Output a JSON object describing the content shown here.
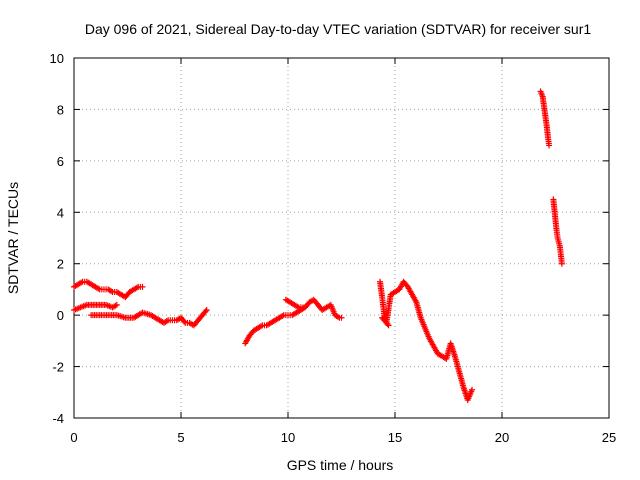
{
  "chart_data": {
    "type": "scatter",
    "title": "Day 096 of 2021, Sidereal Day-to-day VTEC variation (SDTVAR) for receiver sur1",
    "xlabel": "GPS time / hours",
    "ylabel": "SDTVAR / TECUs",
    "xlim": [
      0,
      25
    ],
    "ylim": [
      -4,
      10
    ],
    "xticks": [
      0,
      5,
      10,
      15,
      20,
      25
    ],
    "yticks": [
      -4,
      -2,
      0,
      2,
      4,
      6,
      8,
      10
    ],
    "grid": true,
    "marker": "plus",
    "color": "#ff0000",
    "segments": [
      {
        "name": "arc-a-upper",
        "x": [
          0.0,
          0.2,
          0.4,
          0.6,
          0.8,
          1.0,
          1.2,
          1.4,
          1.6,
          1.8,
          2.0,
          2.2,
          2.4,
          2.6,
          2.8,
          3.0,
          3.2
        ],
        "y": [
          1.1,
          1.2,
          1.3,
          1.3,
          1.2,
          1.1,
          1.0,
          1.0,
          1.0,
          0.9,
          0.9,
          0.8,
          0.7,
          0.9,
          1.0,
          1.1,
          1.1
        ]
      },
      {
        "name": "arc-a-middle",
        "x": [
          0.0,
          0.3,
          0.6,
          0.9,
          1.2,
          1.5,
          1.8,
          2.0
        ],
        "y": [
          0.2,
          0.3,
          0.4,
          0.4,
          0.4,
          0.4,
          0.3,
          0.4
        ]
      },
      {
        "name": "arc-a-lower",
        "x": [
          0.8,
          1.2,
          1.6,
          2.0,
          2.4,
          2.8,
          3.2,
          3.6,
          4.0,
          4.2,
          4.4,
          4.6,
          4.8,
          5.0,
          5.2,
          5.4,
          5.6,
          5.8,
          6.0,
          6.2
        ],
        "y": [
          0.0,
          0.0,
          0.0,
          0.0,
          -0.1,
          -0.1,
          0.1,
          0.0,
          -0.2,
          -0.3,
          -0.2,
          -0.2,
          -0.2,
          -0.1,
          -0.3,
          -0.3,
          -0.4,
          -0.2,
          0.0,
          0.2
        ]
      },
      {
        "name": "arc-b",
        "x": [
          8.0,
          8.2,
          8.4,
          8.6,
          8.8,
          9.0,
          9.2,
          9.4,
          9.6,
          9.8,
          10.0,
          10.2,
          10.4,
          10.6,
          10.8,
          11.0,
          11.2,
          11.4,
          11.6,
          11.8,
          12.0,
          12.2,
          12.4,
          12.5
        ],
        "y": [
          -1.1,
          -0.8,
          -0.6,
          -0.5,
          -0.4,
          -0.4,
          -0.3,
          -0.2,
          -0.1,
          0.0,
          0.0,
          0.0,
          0.1,
          0.2,
          0.3,
          0.5,
          0.6,
          0.4,
          0.2,
          0.3,
          0.4,
          0.0,
          -0.1,
          -0.1
        ]
      },
      {
        "name": "arc-b-bump",
        "x": [
          9.9,
          10.1,
          10.3,
          10.5,
          10.7
        ],
        "y": [
          0.6,
          0.5,
          0.4,
          0.3,
          0.3
        ]
      },
      {
        "name": "arc-c",
        "x": [
          14.3,
          14.4,
          14.5,
          14.6,
          14.8,
          15.0,
          15.2,
          15.4,
          15.6,
          15.8,
          16.0,
          16.2,
          16.4,
          16.6,
          16.8,
          17.0,
          17.2,
          17.4,
          17.6,
          17.8,
          18.0,
          18.2,
          18.4,
          18.6
        ],
        "y": [
          1.3,
          0.7,
          0.0,
          -0.3,
          0.8,
          0.9,
          1.0,
          1.3,
          1.1,
          0.8,
          0.5,
          -0.1,
          -0.5,
          -0.9,
          -1.2,
          -1.5,
          -1.6,
          -1.7,
          -1.1,
          -1.6,
          -2.2,
          -2.8,
          -3.3,
          -2.9
        ]
      },
      {
        "name": "arc-c-dip",
        "x": [
          14.4,
          14.5,
          14.6,
          14.7
        ],
        "y": [
          -0.1,
          -0.2,
          -0.3,
          -0.4
        ]
      },
      {
        "name": "arc-d-high",
        "x": [
          21.8,
          21.9,
          22.0,
          22.1,
          22.15,
          22.2
        ],
        "y": [
          8.7,
          8.5,
          7.9,
          7.3,
          6.9,
          6.6
        ]
      },
      {
        "name": "arc-d-low",
        "x": [
          22.4,
          22.45,
          22.5,
          22.55,
          22.6,
          22.7,
          22.8
        ],
        "y": [
          4.5,
          4.1,
          3.7,
          3.3,
          3.0,
          2.7,
          2.0
        ]
      }
    ]
  }
}
